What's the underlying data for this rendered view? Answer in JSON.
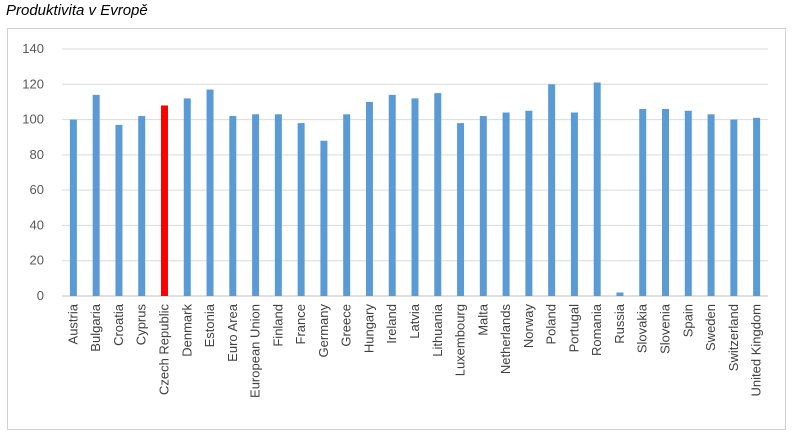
{
  "title": "Produktivita v Evropě",
  "chart_data": {
    "type": "bar",
    "title": "Produktivita v Evropě",
    "xlabel": "",
    "ylabel": "",
    "ylim": [
      0,
      140
    ],
    "yticks": [
      0,
      20,
      40,
      60,
      80,
      100,
      120,
      140
    ],
    "grid": true,
    "legend": "none",
    "bar_color": "#5b9bd5",
    "highlight_color": "#ff0000",
    "highlight_category": "Czech Republic",
    "categories": [
      "Austria",
      "Bulgaria",
      "Croatia",
      "Cyprus",
      "Czech Republic",
      "Denmark",
      "Estonia",
      "Euro Area",
      "European Union",
      "Finland",
      "France",
      "Germany",
      "Greece",
      "Hungary",
      "Ireland",
      "Latvia",
      "Lithuania",
      "Luxembourg",
      "Malta",
      "Netherlands",
      "Norway",
      "Poland",
      "Portugal",
      "Romania",
      "Russia",
      "Slovakia",
      "Slovenia",
      "Spain",
      "Sweden",
      "Switzerland",
      "United Kingdom"
    ],
    "values": [
      100,
      114,
      97,
      102,
      108,
      112,
      117,
      102,
      103,
      103,
      98,
      88,
      103,
      110,
      114,
      112,
      115,
      98,
      102,
      104,
      105,
      120,
      104,
      121,
      2,
      106,
      106,
      105,
      103,
      100,
      101
    ]
  }
}
